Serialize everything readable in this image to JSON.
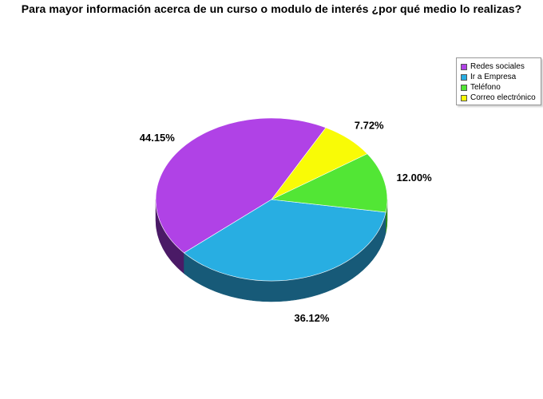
{
  "chart_data": {
    "type": "pie",
    "title": "Para mayor información acerca de un curso o modulo de interés ¿por qué medio lo realizas?",
    "legend_position": "top-right",
    "slices": [
      {
        "name": "Redes sociales",
        "value": 44.15,
        "label": "44.15%",
        "color": "#b042e6",
        "side_color": "#4a1a66"
      },
      {
        "name": "Ir a Empresa",
        "value": 36.12,
        "label": "36.12%",
        "color": "#28aee2",
        "side_color": "#175a78"
      },
      {
        "name": "Teléfono",
        "value": 12.0,
        "label": "12.00%",
        "color": "#52e635",
        "side_color": "#2d8a1d"
      },
      {
        "name": "Correo electrónico",
        "value": 7.72,
        "label": "7.72%",
        "color": "#f9fb06",
        "side_color": "#8a8a10"
      }
    ]
  }
}
